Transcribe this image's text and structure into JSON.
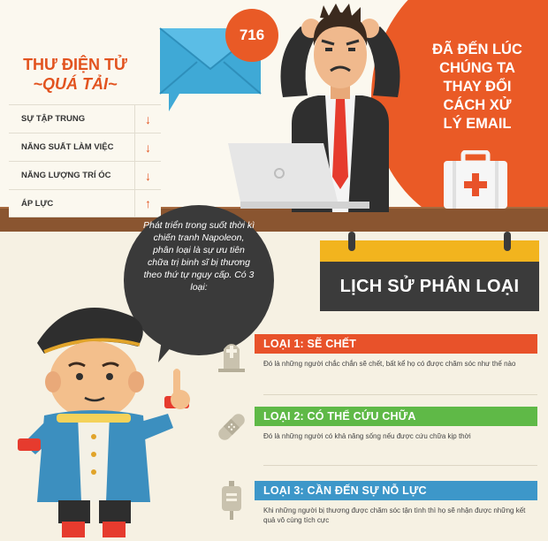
{
  "overload": {
    "title_line1": "THƯ ĐIỆN TỬ",
    "title_line2": "~QUÁ TẢI~",
    "metrics": [
      {
        "label": "SỰ TẬP TRUNG",
        "arrow": "↓"
      },
      {
        "label": "NĂNG SUẤT LÀM VIỆC",
        "arrow": "↓"
      },
      {
        "label": "NĂNG LƯỢNG TRÍ ÓC",
        "arrow": "↓"
      },
      {
        "label": "ÁP LỰC",
        "arrow": "↑"
      }
    ]
  },
  "email_badge": "716",
  "headline": {
    "lines": [
      "ĐÃ ĐẾN LÚC",
      "CHÚNG TA",
      "THAY ĐỔI",
      "CÁCH XỬ",
      "LÝ EMAIL"
    ]
  },
  "speech": "Phát triển trong suốt thời kì chiến tranh Napoleon, phân loại là sự ưu tiên chữa trị binh sĩ bị thương theo thứ tự nguy cấp. Có 3 loại:",
  "history_title": "LỊCH SỬ PHÂN LOẠI",
  "categories": [
    {
      "title": "LOẠI 1: SẼ CHẾT",
      "desc": "Đó là những người chắc chắn sẽ chết, bất kể họ có được chăm sóc như thế nào",
      "color": "#e8522a",
      "icon": "gravestone-icon"
    },
    {
      "title": "LOẠI 2: CÓ THỂ CỨU CHỮA",
      "desc": "Đó là những người có khả năng sống nếu được cứu chữa kịp thời",
      "color": "#5fb947",
      "icon": "bandage-icon"
    },
    {
      "title": "LOẠI 3: CẦN ĐẾN SỰ NỖ LỰC",
      "desc": "Khi những người bị thương được chăm sóc tận tình thì họ sẽ nhận được những kết quả vô cùng tích cực",
      "color": "#3d97c9",
      "icon": "iv-bag-icon"
    }
  ]
}
